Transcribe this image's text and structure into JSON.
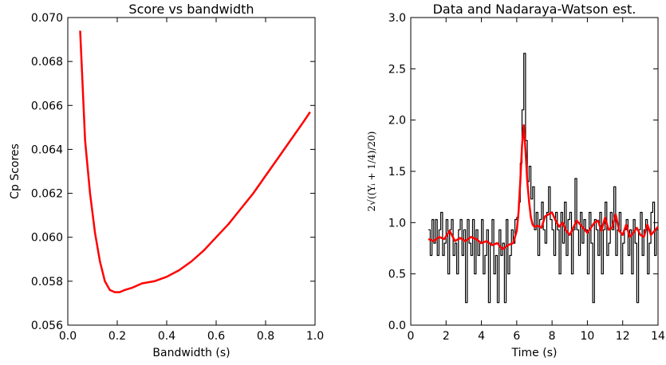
{
  "chart_data": [
    {
      "type": "line",
      "title": "Score vs bandwidth",
      "xlabel": "Bandwidth (s)",
      "ylabel": "Cp Scores",
      "xlim": [
        0.0,
        1.0
      ],
      "ylim": [
        0.056,
        0.07
      ],
      "x_ticks": [
        "0.0",
        "0.2",
        "0.4",
        "0.6",
        "0.8",
        "1.0"
      ],
      "y_ticks": [
        "0.056",
        "0.058",
        "0.060",
        "0.062",
        "0.064",
        "0.066",
        "0.068",
        "0.070"
      ],
      "grid": false,
      "series": [
        {
          "color": "#ff0000",
          "x": [
            0.05,
            0.07,
            0.09,
            0.11,
            0.13,
            0.15,
            0.17,
            0.19,
            0.21,
            0.23,
            0.26,
            0.3,
            0.35,
            0.4,
            0.45,
            0.5,
            0.55,
            0.6,
            0.65,
            0.7,
            0.75,
            0.8,
            0.85,
            0.9,
            0.95,
            0.98
          ],
          "y": [
            0.0694,
            0.0644,
            0.062,
            0.0602,
            0.0589,
            0.058,
            0.0576,
            0.0575,
            0.0575,
            0.0576,
            0.0577,
            0.0579,
            0.058,
            0.0582,
            0.0585,
            0.0589,
            0.0594,
            0.06,
            0.0606,
            0.0613,
            0.062,
            0.0628,
            0.0636,
            0.0644,
            0.0652,
            0.0657
          ]
        }
      ]
    },
    {
      "type": "line",
      "title": "Data and Nadaraya-Watson est.",
      "xlabel": "Time (s)",
      "ylabel": "2√((Yᵢ + 1/4)/20)",
      "xlim": [
        0,
        14
      ],
      "ylim": [
        0.0,
        3.0
      ],
      "x_ticks": [
        "0",
        "2",
        "4",
        "6",
        "8",
        "10",
        "12",
        "14"
      ],
      "y_ticks": [
        "0.0",
        "0.5",
        "1.0",
        "1.5",
        "2.0",
        "2.5",
        "3.0"
      ],
      "grid": false,
      "series": [
        {
          "color": "#000000",
          "x": [
            1.0,
            1.1,
            1.2,
            1.3,
            1.4,
            1.5,
            1.6,
            1.7,
            1.8,
            1.9,
            2.0,
            2.1,
            2.2,
            2.3,
            2.4,
            2.5,
            2.6,
            2.7,
            2.8,
            2.9,
            3.0,
            3.1,
            3.2,
            3.3,
            3.4,
            3.5,
            3.6,
            3.7,
            3.8,
            3.9,
            4.0,
            4.1,
            4.2,
            4.3,
            4.4,
            4.5,
            4.6,
            4.7,
            4.8,
            4.9,
            5.0,
            5.1,
            5.2,
            5.3,
            5.4,
            5.5,
            5.6,
            5.7,
            5.8,
            5.9,
            6.0,
            6.1,
            6.2,
            6.3,
            6.4,
            6.5,
            6.6,
            6.7,
            6.8,
            6.9,
            7.0,
            7.1,
            7.2,
            7.3,
            7.4,
            7.5,
            7.6,
            7.7,
            7.8,
            7.9,
            8.0,
            8.1,
            8.2,
            8.3,
            8.4,
            8.5,
            8.6,
            8.7,
            8.8,
            8.9,
            9.0,
            9.1,
            9.2,
            9.3,
            9.4,
            9.5,
            9.6,
            9.7,
            9.8,
            9.9,
            10.0,
            10.1,
            10.2,
            10.3,
            10.4,
            10.5,
            10.6,
            10.7,
            10.8,
            10.9,
            11.0,
            11.1,
            11.2,
            11.3,
            11.4,
            11.5,
            11.6,
            11.7,
            11.8,
            11.9,
            12.0,
            12.1,
            12.2,
            12.3,
            12.4,
            12.5,
            12.6,
            12.7,
            12.8,
            12.9,
            13.0,
            13.1,
            13.2,
            13.3,
            13.4,
            13.5,
            13.6,
            13.7,
            13.8,
            13.9
          ],
          "y": [
            0.93,
            0.68,
            1.03,
            0.8,
            1.03,
            0.68,
            0.93,
            1.1,
            0.68,
            0.8,
            1.03,
            0.5,
            0.93,
            1.03,
            0.68,
            0.8,
            0.5,
            0.93,
            1.03,
            0.68,
            0.93,
            0.22,
            1.03,
            0.8,
            0.68,
            1.03,
            0.5,
            0.93,
            0.68,
            0.8,
            1.03,
            0.5,
            0.68,
            0.93,
            0.22,
            0.8,
            1.03,
            0.5,
            0.68,
            0.22,
            0.93,
            0.68,
            0.8,
            0.22,
            1.03,
            0.5,
            0.68,
            0.93,
            0.8,
            1.03,
            1.05,
            1.2,
            1.58,
            2.1,
            2.65,
            1.8,
            1.4,
            1.55,
            1.23,
            1.35,
            0.93,
            1.1,
            0.68,
            1.03,
            1.2,
            0.93,
            0.8,
            1.1,
            1.35,
            1.03,
            0.93,
            0.68,
            1.1,
            0.93,
            0.5,
            1.1,
            0.8,
            1.2,
            0.68,
            1.03,
            1.1,
            0.5,
            0.93,
            1.43,
            0.93,
            0.68,
            1.1,
            0.8,
            1.03,
            0.93,
            0.5,
            1.1,
            0.8,
            0.22,
            1.03,
            0.93,
            0.68,
            1.1,
            0.5,
            0.93,
            1.2,
            0.68,
            0.8,
            1.1,
            0.93,
            1.35,
            0.68,
            0.93,
            1.1,
            0.5,
            0.8,
            0.93,
            1.03,
            0.68,
            0.93,
            0.5,
            1.03,
            0.8,
            0.22,
            0.93,
            1.1,
            0.68,
            0.93,
            1.03,
            0.5,
            0.8,
            1.1,
            1.2,
            0.68,
            0.93
          ]
        },
        {
          "color": "#ff0000",
          "x": [
            1.0,
            1.3,
            1.6,
            1.9,
            2.2,
            2.5,
            2.8,
            3.1,
            3.4,
            3.7,
            4.0,
            4.3,
            4.6,
            4.9,
            5.2,
            5.5,
            5.8,
            6.0,
            6.1,
            6.2,
            6.3,
            6.4,
            6.5,
            6.6,
            6.7,
            6.8,
            6.9,
            7.0,
            7.2,
            7.4,
            7.6,
            7.8,
            8.0,
            8.2,
            8.4,
            8.6,
            8.8,
            9.0,
            9.2,
            9.4,
            9.6,
            9.8,
            10.0,
            10.2,
            10.4,
            10.6,
            10.8,
            11.0,
            11.2,
            11.4,
            11.6,
            11.8,
            12.0,
            12.2,
            12.4,
            12.6,
            12.8,
            13.0,
            13.2,
            13.4,
            13.6,
            13.8,
            14.0
          ],
          "y": [
            0.84,
            0.82,
            0.86,
            0.84,
            0.92,
            0.82,
            0.85,
            0.82,
            0.86,
            0.84,
            0.8,
            0.82,
            0.78,
            0.8,
            0.74,
            0.78,
            0.8,
            0.92,
            1.1,
            1.4,
            1.75,
            1.95,
            1.7,
            1.4,
            1.2,
            1.05,
            0.98,
            0.96,
            0.97,
            0.95,
            1.06,
            1.08,
            1.1,
            1.02,
            0.96,
            1.0,
            0.92,
            0.88,
            0.95,
            1.02,
            0.98,
            0.94,
            0.9,
            0.95,
            1.0,
            1.02,
            0.92,
            1.05,
            0.93,
            0.95,
            1.08,
            0.92,
            0.88,
            0.98,
            0.86,
            0.9,
            0.95,
            0.88,
            0.86,
            0.98,
            0.88,
            0.92,
            0.96
          ]
        }
      ]
    }
  ]
}
